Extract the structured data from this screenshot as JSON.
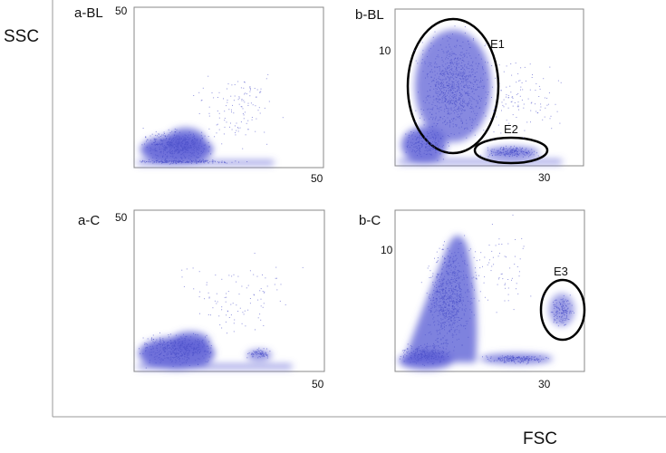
{
  "axes": {
    "y_label": "SSC",
    "x_label": "FSC"
  },
  "panels": [
    {
      "label": "a-BL",
      "y_tick": "50",
      "x_tick": "50"
    },
    {
      "label": "b-BL",
      "y_tick": "10",
      "x_tick": "30",
      "gates": [
        "E1",
        "E2"
      ]
    },
    {
      "label": "a-C",
      "y_tick": "50",
      "x_tick": "50"
    },
    {
      "label": "b-C",
      "y_tick": "10",
      "x_tick": "30",
      "gates": [
        "E3"
      ]
    }
  ]
}
